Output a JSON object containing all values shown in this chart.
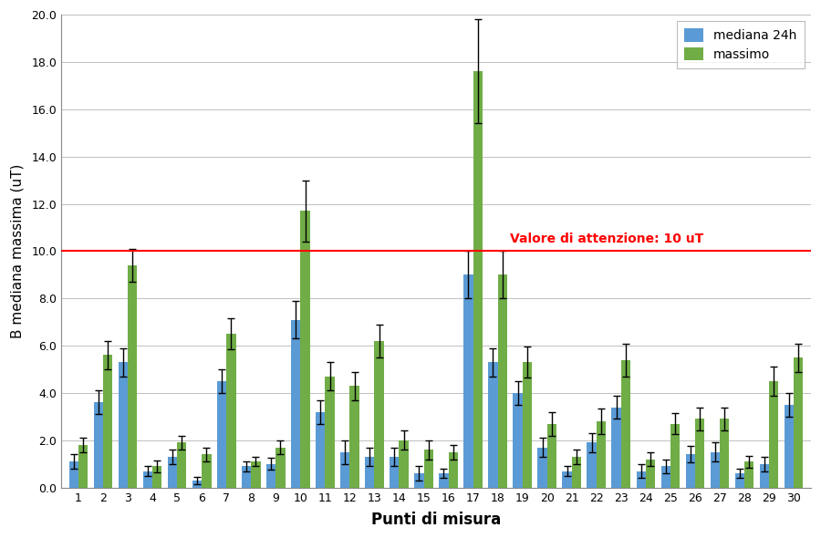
{
  "categories": [
    1,
    2,
    3,
    4,
    5,
    6,
    7,
    8,
    9,
    10,
    11,
    12,
    13,
    14,
    15,
    16,
    17,
    18,
    19,
    20,
    21,
    22,
    23,
    24,
    25,
    26,
    27,
    28,
    29,
    30
  ],
  "mediana": [
    1.1,
    3.6,
    5.3,
    0.7,
    1.3,
    0.3,
    4.5,
    0.9,
    1.0,
    7.1,
    3.2,
    1.5,
    1.3,
    1.3,
    0.6,
    0.6,
    9.0,
    5.3,
    4.0,
    1.7,
    0.7,
    1.9,
    3.4,
    0.7,
    0.9,
    1.4,
    1.5,
    0.6,
    1.0,
    3.5
  ],
  "massimo": [
    1.8,
    5.6,
    9.4,
    0.9,
    1.9,
    1.4,
    6.5,
    1.1,
    1.7,
    11.7,
    4.7,
    4.3,
    6.2,
    2.0,
    1.6,
    1.5,
    17.6,
    9.0,
    5.3,
    2.7,
    1.3,
    2.8,
    5.4,
    1.2,
    2.7,
    2.9,
    2.9,
    1.1,
    4.5,
    5.5
  ],
  "mediana_err": [
    0.3,
    0.5,
    0.6,
    0.2,
    0.3,
    0.15,
    0.5,
    0.2,
    0.25,
    0.8,
    0.5,
    0.5,
    0.4,
    0.4,
    0.3,
    0.2,
    1.0,
    0.6,
    0.5,
    0.4,
    0.2,
    0.4,
    0.5,
    0.3,
    0.3,
    0.35,
    0.4,
    0.2,
    0.3,
    0.5
  ],
  "massimo_err": [
    0.3,
    0.6,
    0.7,
    0.25,
    0.3,
    0.3,
    0.65,
    0.2,
    0.3,
    1.3,
    0.6,
    0.6,
    0.7,
    0.4,
    0.4,
    0.3,
    2.2,
    1.0,
    0.65,
    0.5,
    0.3,
    0.55,
    0.7,
    0.3,
    0.45,
    0.5,
    0.5,
    0.25,
    0.6,
    0.6
  ],
  "color_mediana": "#5B9BD5",
  "color_massimo": "#70AD47",
  "reference_line": 10.0,
  "reference_label": "Valore di attenzione: 10 uT",
  "reference_color": "#FF0000",
  "ylabel": "B mediana massima (uT)",
  "xlabel": "Punti di misura",
  "ylim": [
    0,
    20.0
  ],
  "yticks": [
    0.0,
    2.0,
    4.0,
    6.0,
    8.0,
    10.0,
    12.0,
    14.0,
    16.0,
    18.0,
    20.0
  ],
  "ytick_labels": [
    "0.0",
    "2.0",
    "4.0",
    "6.0",
    "8.0",
    "10.0",
    "12.0",
    "14.0",
    "16.0",
    "18.0",
    "20.0"
  ],
  "legend_mediana": "mediana 24h",
  "legend_massimo": "massimo",
  "background_color": "#FFFFFF",
  "grid_color": "#C0C0C0",
  "bar_width": 0.38
}
